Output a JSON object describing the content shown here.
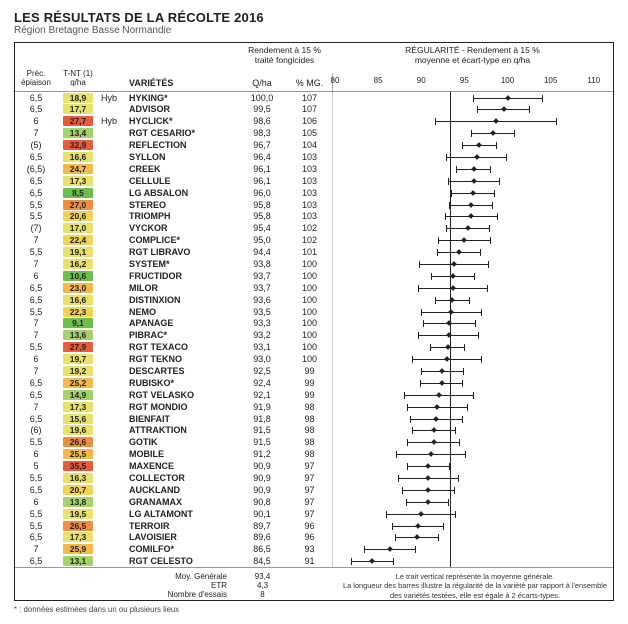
{
  "title": "LES RÉSULTATS DE LA RÉCOLTE 2016",
  "subtitle": "Région Bretagne Basse Normandie",
  "headers": {
    "prec": "Préc.\népiaison",
    "tnt": "T-NT (1)\nq/ha",
    "var": "VARIÉTÉS",
    "yield_top": "Rendement à 15 %\ntraité fongicides",
    "qha": "Q/ha",
    "mg": "% MG.",
    "reg_top": "RÉGULARITÉ - Rendement à 15 %\nmoyenne et écart-type en q/ha"
  },
  "axis": {
    "min": 80,
    "max": 112,
    "ticks": [
      80,
      85,
      90,
      95,
      100,
      105,
      110
    ],
    "mean": 93.4
  },
  "colors": {
    "g1": "#6cbf4a",
    "g2": "#a5d36a",
    "y1": "#e9e26a",
    "y2": "#f2d452",
    "o1": "#f5b94a",
    "o2": "#ef8f3e",
    "r1": "#e85c3e"
  },
  "rows": [
    {
      "prec": "6,5",
      "tnt": "18,9",
      "c": "y1",
      "hyb": "Hyb",
      "var": "HYKING*",
      "q": "100,0",
      "mg": "107",
      "mean": 100.0,
      "std": 4.0
    },
    {
      "prec": "6,5",
      "tnt": "17,7",
      "c": "y1",
      "var": "ADVISOR",
      "q": "99,5",
      "mg": "107",
      "mean": 99.5,
      "std": 3.0
    },
    {
      "prec": "6",
      "tnt": "27,7",
      "c": "r1",
      "hyb": "Hyb",
      "var": "HYCLICK*",
      "q": "98,6",
      "mg": "106",
      "mean": 98.6,
      "std": 7.0
    },
    {
      "prec": "7",
      "tnt": "13,4",
      "c": "g2",
      "var": "RGT CESARIO*",
      "q": "98,3",
      "mg": "105",
      "mean": 98.3,
      "std": 2.5
    },
    {
      "prec": "(5)",
      "tnt": "32,9",
      "c": "r1",
      "var": "REFLECTION",
      "q": "96,7",
      "mg": "104",
      "mean": 96.7,
      "std": 2.0
    },
    {
      "prec": "6,5",
      "tnt": "16,6",
      "c": "y1",
      "var": "SYLLON",
      "q": "96,4",
      "mg": "103",
      "mean": 96.4,
      "std": 3.5
    },
    {
      "prec": "(6,5)",
      "tnt": "24,7",
      "c": "o1",
      "var": "CREEK",
      "q": "96,1",
      "mg": "103",
      "mean": 96.1,
      "std": 2.0
    },
    {
      "prec": "6,5",
      "tnt": "17,3",
      "c": "y1",
      "var": "CELLULE",
      "q": "96,1",
      "mg": "103",
      "mean": 96.1,
      "std": 3.0
    },
    {
      "prec": "6,5",
      "tnt": "8,5",
      "c": "g1",
      "var": "LG ABSALON",
      "q": "96,0",
      "mg": "103",
      "mean": 96.0,
      "std": 2.5
    },
    {
      "prec": "5,5",
      "tnt": "27,0",
      "c": "o2",
      "var": "STEREO",
      "q": "95,8",
      "mg": "103",
      "mean": 95.8,
      "std": 2.5
    },
    {
      "prec": "5,5",
      "tnt": "20,6",
      "c": "y2",
      "var": "TRIOMPH",
      "q": "95,8",
      "mg": "103",
      "mean": 95.8,
      "std": 3.0
    },
    {
      "prec": "(7)",
      "tnt": "17,0",
      "c": "y1",
      "var": "VYCKOR",
      "q": "95,4",
      "mg": "102",
      "mean": 95.4,
      "std": 2.5
    },
    {
      "prec": "7",
      "tnt": "22,4",
      "c": "y2",
      "var": "COMPLICE*",
      "q": "95,0",
      "mg": "102",
      "mean": 95.0,
      "std": 3.0
    },
    {
      "prec": "5,5",
      "tnt": "19,1",
      "c": "y1",
      "var": "RGT LIBRAVO",
      "q": "94,4",
      "mg": "101",
      "mean": 94.4,
      "std": 2.5
    },
    {
      "prec": "7",
      "tnt": "16,2",
      "c": "y1",
      "var": "SYSTEM*",
      "q": "93,8",
      "mg": "100",
      "mean": 93.8,
      "std": 4.0
    },
    {
      "prec": "6",
      "tnt": "10,6",
      "c": "g1",
      "var": "FRUCTIDOR",
      "q": "93,7",
      "mg": "100",
      "mean": 93.7,
      "std": 2.5
    },
    {
      "prec": "6,5",
      "tnt": "23,0",
      "c": "o1",
      "var": "MILOR",
      "q": "93,7",
      "mg": "100",
      "mean": 93.7,
      "std": 4.0
    },
    {
      "prec": "6,5",
      "tnt": "16,6",
      "c": "y1",
      "var": "DISTINXION",
      "q": "93,6",
      "mg": "100",
      "mean": 93.6,
      "std": 2.0
    },
    {
      "prec": "5,5",
      "tnt": "22,3",
      "c": "y2",
      "var": "NEMO",
      "q": "93,5",
      "mg": "100",
      "mean": 93.5,
      "std": 3.5
    },
    {
      "prec": "7",
      "tnt": "9,1",
      "c": "g1",
      "var": "APANAGE",
      "q": "93,3",
      "mg": "100",
      "mean": 93.3,
      "std": 3.0
    },
    {
      "prec": "7",
      "tnt": "13,6",
      "c": "g2",
      "var": "PIBRAC*",
      "q": "93,2",
      "mg": "100",
      "mean": 93.2,
      "std": 3.5
    },
    {
      "prec": "5,5",
      "tnt": "27,9",
      "c": "r1",
      "var": "RGT TEXACO",
      "q": "93,1",
      "mg": "100",
      "mean": 93.1,
      "std": 2.0
    },
    {
      "prec": "6",
      "tnt": "19,7",
      "c": "y1",
      "var": "RGT TEKNO",
      "q": "93,0",
      "mg": "100",
      "mean": 93.0,
      "std": 4.0
    },
    {
      "prec": "7",
      "tnt": "19,2",
      "c": "y1",
      "var": "DESCARTES",
      "q": "92,5",
      "mg": "99",
      "mean": 92.5,
      "std": 2.5
    },
    {
      "prec": "6,5",
      "tnt": "25,2",
      "c": "o1",
      "var": "RUBISKO*",
      "q": "92,4",
      "mg": "99",
      "mean": 92.4,
      "std": 2.5
    },
    {
      "prec": "6,5",
      "tnt": "14,9",
      "c": "g2",
      "var": "RGT VELASKO",
      "q": "92,1",
      "mg": "99",
      "mean": 92.1,
      "std": 4.0
    },
    {
      "prec": "7",
      "tnt": "17,3",
      "c": "y1",
      "var": "RGT MONDIO",
      "q": "91,9",
      "mg": "98",
      "mean": 91.9,
      "std": 3.5
    },
    {
      "prec": "6,5",
      "tnt": "15,6",
      "c": "y1",
      "var": "BIENFAIT",
      "q": "91,8",
      "mg": "98",
      "mean": 91.8,
      "std": 3.0
    },
    {
      "prec": "(6)",
      "tnt": "19,6",
      "c": "y1",
      "var": "ATTRAKTION",
      "q": "91,5",
      "mg": "98",
      "mean": 91.5,
      "std": 2.5
    },
    {
      "prec": "5,5",
      "tnt": "26,6",
      "c": "o2",
      "var": "GOTIK",
      "q": "91,5",
      "mg": "98",
      "mean": 91.5,
      "std": 3.0
    },
    {
      "prec": "6",
      "tnt": "25,5",
      "c": "o1",
      "var": "MOBILE",
      "q": "91,2",
      "mg": "98",
      "mean": 91.2,
      "std": 4.0
    },
    {
      "prec": "5",
      "tnt": "35,5",
      "c": "r1",
      "var": "MAXENCE",
      "q": "90,9",
      "mg": "97",
      "mean": 90.9,
      "std": 2.5
    },
    {
      "prec": "5,5",
      "tnt": "16,3",
      "c": "y1",
      "var": "COLLECTOR",
      "q": "90,9",
      "mg": "97",
      "mean": 90.9,
      "std": 3.5
    },
    {
      "prec": "6,5",
      "tnt": "20,7",
      "c": "y2",
      "var": "AUCKLAND",
      "q": "90,9",
      "mg": "97",
      "mean": 90.9,
      "std": 3.0
    },
    {
      "prec": "6",
      "tnt": "13,8",
      "c": "g2",
      "var": "GRANAMAX",
      "q": "90,8",
      "mg": "97",
      "mean": 90.8,
      "std": 2.5
    },
    {
      "prec": "5,5",
      "tnt": "19,5",
      "c": "y1",
      "var": "LG ALTAMONT",
      "q": "90,1",
      "mg": "97",
      "mean": 90.1,
      "std": 4.0
    },
    {
      "prec": "5,5",
      "tnt": "26,5",
      "c": "o2",
      "var": "TERROIR",
      "q": "89,7",
      "mg": "96",
      "mean": 89.7,
      "std": 3.0
    },
    {
      "prec": "6,5",
      "tnt": "17,3",
      "c": "y1",
      "var": "LAVOISIER",
      "q": "89,6",
      "mg": "96",
      "mean": 89.6,
      "std": 2.5
    },
    {
      "prec": "7",
      "tnt": "25,9",
      "c": "o1",
      "var": "COMILFO*",
      "q": "86,5",
      "mg": "93",
      "mean": 86.5,
      "std": 3.0
    },
    {
      "prec": "6,5",
      "tnt": "13,1",
      "c": "g2",
      "var": "RGT CELESTO",
      "q": "84,5",
      "mg": "91",
      "mean": 84.5,
      "std": 2.5
    }
  ],
  "summary": {
    "labels": [
      "Moy. Générale",
      "ETR",
      "Nombre d'essais"
    ],
    "values": [
      "93,4",
      "4,3",
      "8"
    ]
  },
  "caption1": "Le trait vertical représente la moyenne générale.",
  "caption2": "La longueur des barres illustre la régularité de la variété par rapport à l'ensemble des variétés testées, elle est égale à 2 écarts-types.",
  "footnote": "* : données estimées dans un ou plusieurs lieux"
}
